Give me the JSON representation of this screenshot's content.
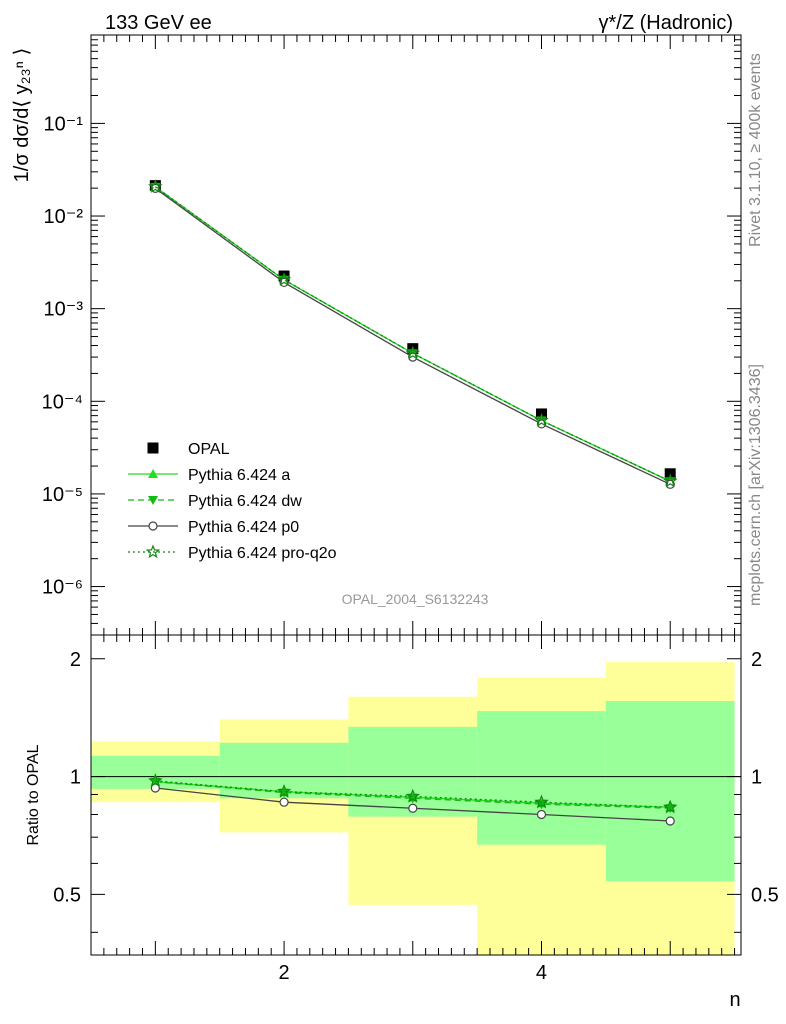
{
  "header": {
    "left_title": "133 GeV ee",
    "right_title": "γ*/Z (Hadronic)"
  },
  "side_labels": {
    "rivet": "Rivet 3.1.10, ≥ 400k events",
    "mcplots": "mcplots.cern.ch [arXiv:1306.3436]"
  },
  "analysis_id": "OPAL_2004_S6132243",
  "colors": {
    "data": "#000000",
    "pythia_a": "#22dd22",
    "pythia_dw": "#11bb11",
    "pythia_p0": "#444444",
    "pythia_pro_q2o": "#118811",
    "band_outer": "#ffff99",
    "band_inner": "#99ff99"
  },
  "chart_data": [
    {
      "type": "scatter",
      "panel": "main",
      "xlabel": "n",
      "ylabel": "1/σ dσ/d⟨ y₂₃ⁿ ⟩",
      "yscale": "log",
      "ylim": [
        3e-07,
        0.9
      ],
      "xlim": [
        0.5,
        5.55
      ],
      "y_ticks": [
        "10⁻⁶",
        "10⁻⁵",
        "10⁻⁴",
        "10⁻³",
        "10⁻²",
        "10⁻¹"
      ],
      "x": [
        1,
        2,
        3,
        4,
        5
      ],
      "series": [
        {
          "name": "OPAL",
          "marker": "square",
          "values": [
            0.0213,
            0.00225,
            0.00037,
            7.3e-05,
            1.65e-05
          ]
        },
        {
          "name": "Pythia 6.424 a",
          "marker": "triangle-up",
          "line": "solid",
          "values": [
            0.0206,
            0.00205,
            0.00033,
            6.2e-05,
            1.37e-05
          ]
        },
        {
          "name": "Pythia 6.424 dw",
          "marker": "triangle-down",
          "line": "dashed",
          "values": [
            0.0206,
            0.00205,
            0.00033,
            6.2e-05,
            1.37e-05
          ]
        },
        {
          "name": "Pythia 6.424 p0",
          "marker": "circle-open",
          "line": "solid",
          "values": [
            0.0199,
            0.00192,
            0.0003,
            5.7e-05,
            1.27e-05
          ]
        },
        {
          "name": "Pythia 6.424 pro-q2o",
          "marker": "star-open",
          "line": "dotted",
          "values": [
            0.0207,
            0.00205,
            0.00033,
            6.2e-05,
            1.37e-05
          ]
        }
      ]
    },
    {
      "type": "line",
      "panel": "ratio",
      "xlabel": "n",
      "ylabel": "Ratio to OPAL",
      "ylim": [
        0.35,
        2.3
      ],
      "x_ticks": [
        "2",
        "4"
      ],
      "y_ticks": [
        "0.5",
        "1",
        "2"
      ],
      "x": [
        1,
        2,
        3,
        4,
        5
      ],
      "bins": [
        [
          0.5,
          1.5
        ],
        [
          1.5,
          2.5
        ],
        [
          2.5,
          3.5
        ],
        [
          3.5,
          4.5
        ],
        [
          4.5,
          5.5
        ]
      ],
      "band_outer": [
        [
          0.86,
          1.23
        ],
        [
          0.72,
          1.4
        ],
        [
          0.47,
          1.6
        ],
        [
          0.33,
          1.79
        ],
        [
          0.33,
          1.96
        ]
      ],
      "band_inner": [
        [
          0.93,
          1.13
        ],
        [
          0.88,
          1.22
        ],
        [
          0.79,
          1.34
        ],
        [
          0.67,
          1.47
        ],
        [
          0.54,
          1.56
        ]
      ],
      "series": [
        {
          "name": "Pythia 6.424 a",
          "values": [
            0.97,
            0.915,
            0.885,
            0.855,
            0.835
          ]
        },
        {
          "name": "Pythia 6.424 dw",
          "values": [
            0.97,
            0.91,
            0.88,
            0.85,
            0.83
          ]
        },
        {
          "name": "Pythia 6.424 p0",
          "values": [
            0.935,
            0.86,
            0.83,
            0.8,
            0.77
          ]
        },
        {
          "name": "Pythia 6.424 pro-q2o",
          "values": [
            0.975,
            0.915,
            0.89,
            0.86,
            0.835
          ]
        }
      ]
    }
  ]
}
